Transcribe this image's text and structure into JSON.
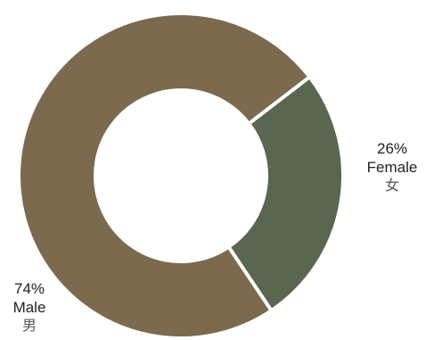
{
  "chart_data": {
    "type": "pie",
    "title": "",
    "slices": [
      {
        "label": "Male",
        "label_zh": "男",
        "value": 74,
        "display": "74%",
        "color": "#7c6a4f"
      },
      {
        "label": "Female",
        "label_zh": "女",
        "value": 26,
        "display": "26%",
        "color": "#5b6651"
      }
    ],
    "donut": true,
    "legend": "none"
  }
}
